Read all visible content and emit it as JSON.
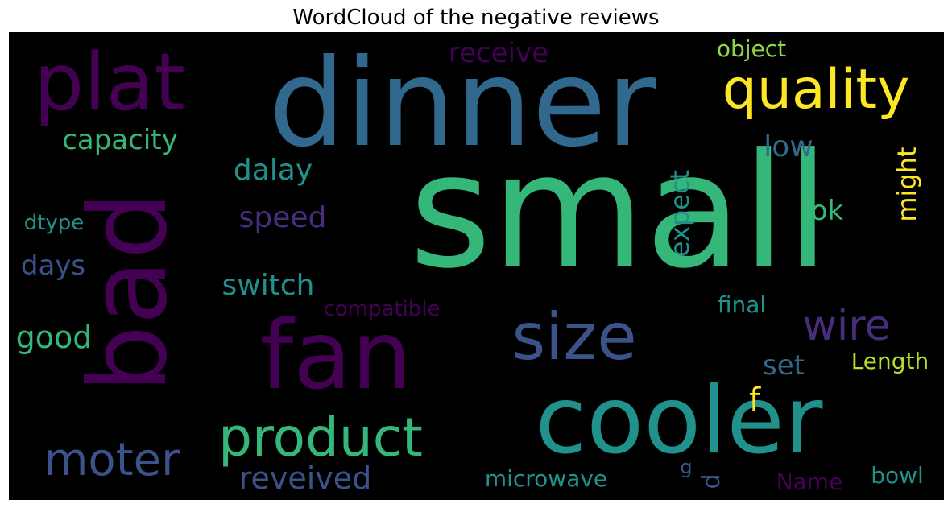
{
  "figure": {
    "title": "WordCloud of the negative reviews"
  },
  "wordcloud": {
    "background": "#000000",
    "words": [
      {
        "text": "small",
        "color": "#35b779"
      },
      {
        "text": "dinner",
        "color": "#31688e"
      },
      {
        "text": "bad",
        "color": "#440154"
      },
      {
        "text": "plat",
        "color": "#440154"
      },
      {
        "text": "fan",
        "color": "#440154"
      },
      {
        "text": "cooler",
        "color": "#21918c"
      },
      {
        "text": "size",
        "color": "#3b528b"
      },
      {
        "text": "quality",
        "color": "#fde725"
      },
      {
        "text": "product",
        "color": "#35b779"
      },
      {
        "text": "moter",
        "color": "#3b528b"
      },
      {
        "text": "wire",
        "color": "#472d7b"
      },
      {
        "text": "capacity",
        "color": "#35b779"
      },
      {
        "text": "dalay",
        "color": "#21918c"
      },
      {
        "text": "speed",
        "color": "#472d7b"
      },
      {
        "text": "switch",
        "color": "#21918c"
      },
      {
        "text": "days",
        "color": "#3b528b"
      },
      {
        "text": "dtype",
        "color": "#21918c"
      },
      {
        "text": "good",
        "color": "#35b779"
      },
      {
        "text": "receive",
        "color": "#440154"
      },
      {
        "text": "object",
        "color": "#90d743"
      },
      {
        "text": "low",
        "color": "#31688e"
      },
      {
        "text": "might",
        "color": "#fde725"
      },
      {
        "text": "expect",
        "color": "#21918c"
      },
      {
        "text": "ok",
        "color": "#35b779"
      },
      {
        "text": "compatible",
        "color": "#440154"
      },
      {
        "text": "final",
        "color": "#21918c"
      },
      {
        "text": "set",
        "color": "#31688e"
      },
      {
        "text": "Length",
        "color": "#b5de2b"
      },
      {
        "text": "f",
        "color": "#fde725"
      },
      {
        "text": "reveived",
        "color": "#3b528b"
      },
      {
        "text": "microwave",
        "color": "#21918c"
      },
      {
        "text": "g",
        "color": "#3b528b"
      },
      {
        "text": "d",
        "color": "#3b528b"
      },
      {
        "text": "Name",
        "color": "#440154"
      },
      {
        "text": "bowl",
        "color": "#21918c"
      }
    ]
  }
}
